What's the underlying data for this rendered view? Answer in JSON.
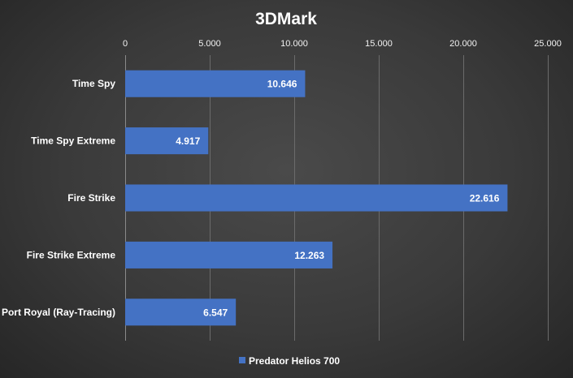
{
  "chart_data": {
    "type": "bar",
    "orientation": "horizontal",
    "title": "3DMark",
    "categories": [
      "Time Spy",
      "Time Spy Extreme",
      "Fire Strike",
      "Fire Strike Extreme",
      "Port Royal (Ray-Tracing)"
    ],
    "series": [
      {
        "name": "Predator Helios 700",
        "values": [
          10646,
          4917,
          22616,
          12263,
          6547
        ],
        "color": "#4472c4"
      }
    ],
    "data_labels": [
      "10.646",
      "4.917",
      "22.616",
      "12.263",
      "6.547"
    ],
    "x_ticks": [
      0,
      5000,
      10000,
      15000,
      20000,
      25000
    ],
    "x_tick_labels": [
      "0",
      "5.000",
      "10.000",
      "15.000",
      "20.000",
      "25.000"
    ],
    "xlim": [
      0,
      25000
    ],
    "axis_position": "top",
    "grid": true,
    "legend_position": "bottom",
    "colors": {
      "gridline": "#6b6b6b",
      "bar": "#4472c4",
      "text": "#ffffff"
    }
  }
}
